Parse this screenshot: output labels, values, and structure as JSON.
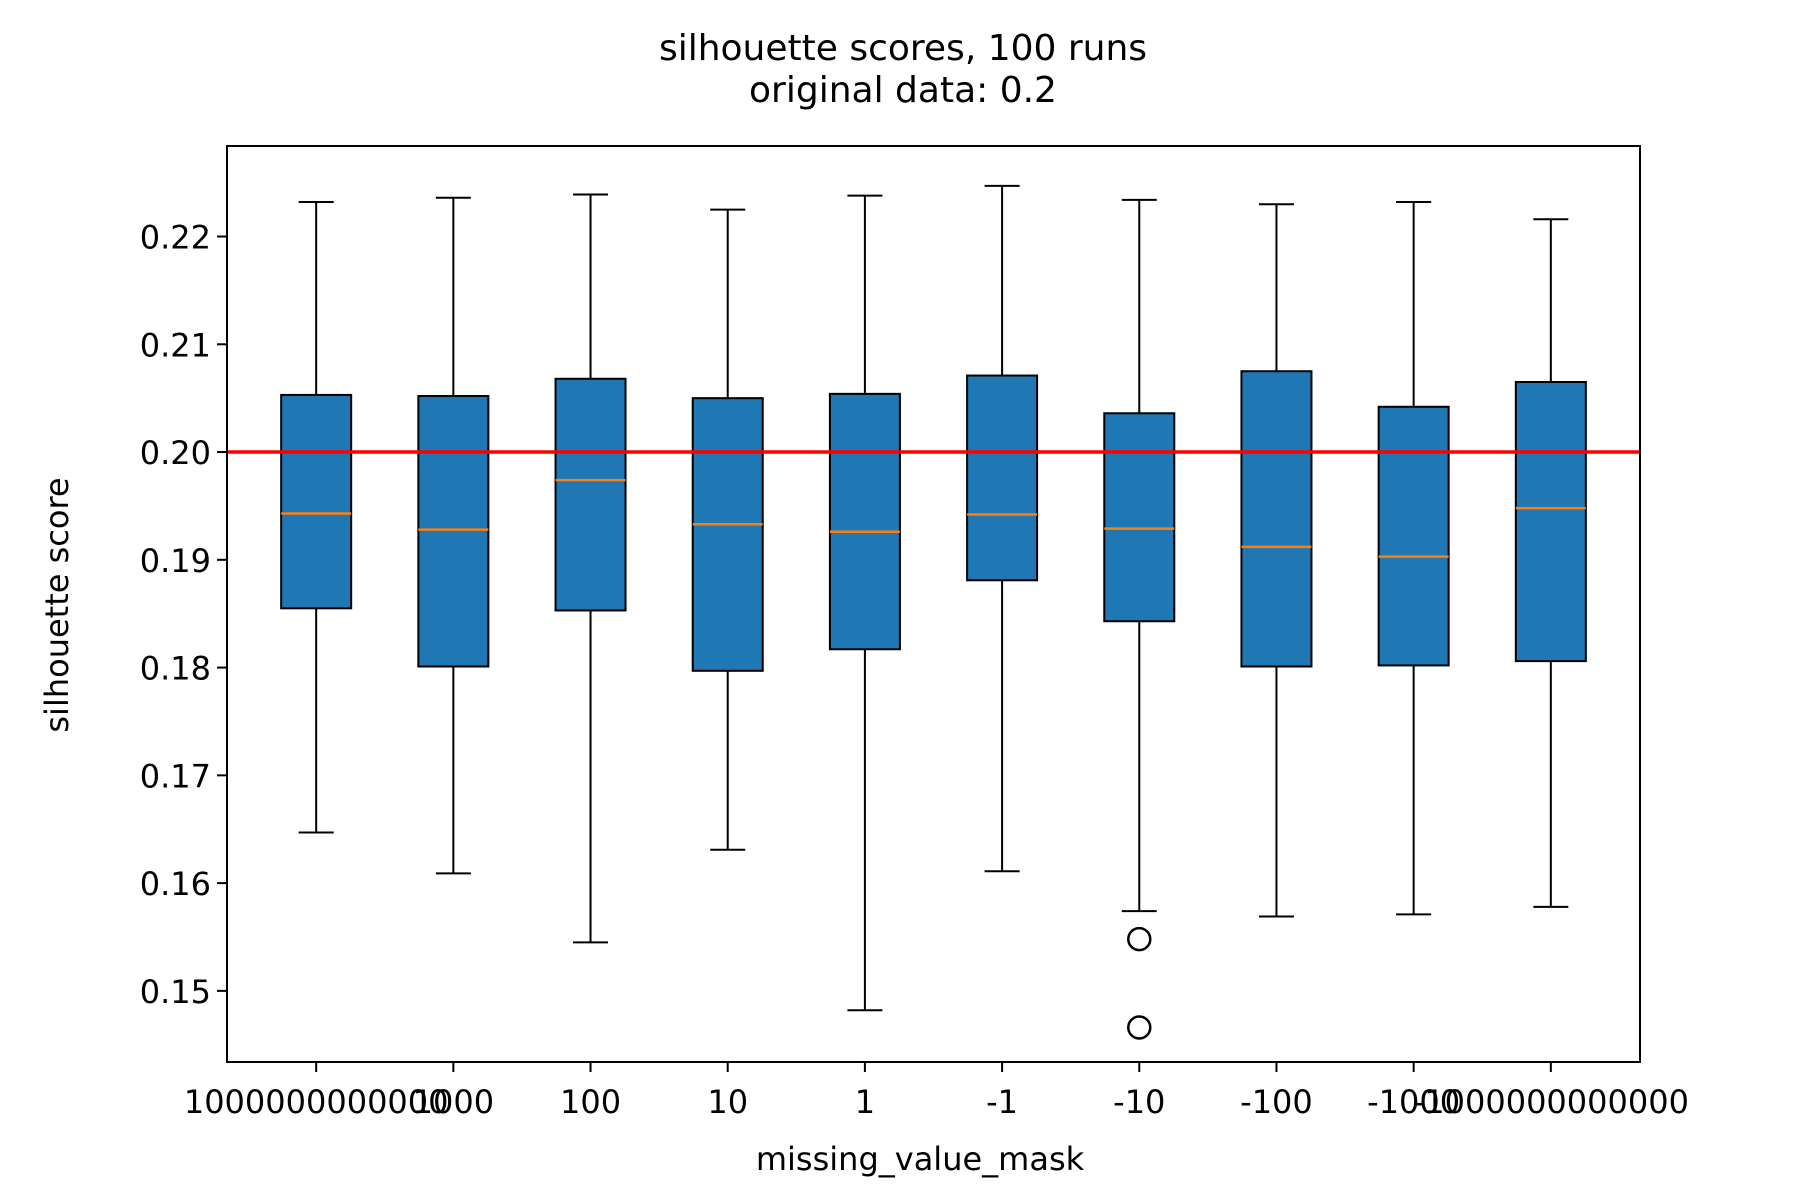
{
  "chart_data": {
    "type": "boxplot",
    "title": "silhouette scores, 100 runs",
    "subtitle": "original data: 0.2",
    "xlabel": "missing_value_mask",
    "ylabel": "silhouette score",
    "categories": [
      "1000000000000",
      "1000",
      "100",
      "10",
      "1",
      "-1",
      "-10",
      "-100",
      "-1000",
      "-1000000000000"
    ],
    "ylim": [
      0.1434,
      0.2284
    ],
    "yticks": [
      0.15,
      0.16,
      0.17,
      0.18,
      0.19,
      0.2,
      0.21,
      0.22
    ],
    "ytick_labels": [
      "0.15",
      "0.16",
      "0.17",
      "0.18",
      "0.19",
      "0.20",
      "0.21",
      "0.22"
    ],
    "reference_line": {
      "y": 0.2,
      "color": "#ff0000"
    },
    "box_color": "#1f77b4",
    "median_color": "#ff7f0e",
    "grid": false,
    "boxes": [
      {
        "label": "1000000000000",
        "whisker_low": 0.1647,
        "q1": 0.1855,
        "median": 0.1943,
        "q3": 0.2053,
        "whisker_high": 0.2232,
        "outliers": []
      },
      {
        "label": "1000",
        "whisker_low": 0.1609,
        "q1": 0.1801,
        "median": 0.1928,
        "q3": 0.2052,
        "whisker_high": 0.2236,
        "outliers": []
      },
      {
        "label": "100",
        "whisker_low": 0.1545,
        "q1": 0.1853,
        "median": 0.1974,
        "q3": 0.2068,
        "whisker_high": 0.2239,
        "outliers": []
      },
      {
        "label": "10",
        "whisker_low": 0.1631,
        "q1": 0.1797,
        "median": 0.1933,
        "q3": 0.205,
        "whisker_high": 0.2225,
        "outliers": []
      },
      {
        "label": "1",
        "whisker_low": 0.1482,
        "q1": 0.1817,
        "median": 0.1926,
        "q3": 0.2054,
        "whisker_high": 0.2238,
        "outliers": []
      },
      {
        "label": "-1",
        "whisker_low": 0.1611,
        "q1": 0.1881,
        "median": 0.1942,
        "q3": 0.2071,
        "whisker_high": 0.2247,
        "outliers": []
      },
      {
        "label": "-10",
        "whisker_low": 0.1574,
        "q1": 0.1843,
        "median": 0.1929,
        "q3": 0.2036,
        "whisker_high": 0.2234,
        "outliers": [
          0.1548,
          0.1466
        ]
      },
      {
        "label": "-100",
        "whisker_low": 0.1569,
        "q1": 0.1801,
        "median": 0.1912,
        "q3": 0.2075,
        "whisker_high": 0.223,
        "outliers": []
      },
      {
        "label": "-1000",
        "whisker_low": 0.1571,
        "q1": 0.1802,
        "median": 0.1903,
        "q3": 0.2042,
        "whisker_high": 0.2232,
        "outliers": []
      },
      {
        "label": "-1000000000000",
        "whisker_low": 0.1578,
        "q1": 0.1806,
        "median": 0.1948,
        "q3": 0.2065,
        "whisker_high": 0.2216,
        "outliers": []
      }
    ]
  }
}
